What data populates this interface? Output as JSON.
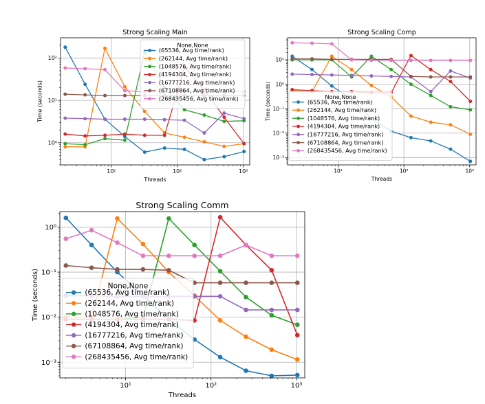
{
  "chart_data": [
    {
      "type": "line",
      "title": "Strong Scaling Main",
      "xlabel": "Threads",
      "ylabel": "Time (seconds)",
      "xscale": "log",
      "yscale": "log",
      "xlim": [
        1.7,
        1250
      ],
      "ylim": [
        0.3,
        300
      ],
      "xticks": [
        10,
        100,
        1000
      ],
      "xtick_labels": [
        "10¹",
        "10²",
        "10³"
      ],
      "yticks": [
        1,
        10,
        100
      ],
      "ytick_labels": [
        "10⁰",
        "10¹",
        "10²"
      ],
      "grid": true,
      "legend_title": "None,None",
      "legend_position": "upper right",
      "x": [
        2,
        4,
        8,
        16,
        32,
        64,
        128,
        256,
        512,
        1024
      ],
      "series": [
        {
          "name": "(65536, Avg time/rank)",
          "color": "#1f77b4",
          "values": [
            180,
            24,
            3.6,
            1.4,
            0.6,
            0.75,
            0.7,
            0.4,
            0.47,
            0.62
          ]
        },
        {
          "name": "(262144, Avg time/rank)",
          "color": "#ff7f0e",
          "values": [
            0.8,
            0.8,
            170,
            21,
            5.5,
            1.7,
            1.35,
            1.05,
            0.82,
            0.95
          ]
        },
        {
          "name": "(1048576, Avg time/rank)",
          "color": "#2ca02c",
          "values": [
            0.95,
            0.9,
            1.25,
            1.15,
            140,
            20,
            6.0,
            4.5,
            3.2,
            3.3
          ]
        },
        {
          "name": "(4194304, Avg time/rank)",
          "color": "#d62728",
          "values": [
            1.6,
            1.45,
            1.5,
            1.6,
            1.5,
            1.5,
            60,
            18,
            4.0,
            0.95
          ]
        },
        {
          "name": "(16777216, Avg time/rank)",
          "color": "#9467bd",
          "values": [
            3.8,
            3.7,
            3.6,
            3.6,
            3.6,
            3.5,
            3.4,
            1.7,
            5.0,
            3.7
          ]
        },
        {
          "name": "(67108864, Avg time/rank)",
          "color": "#8c564b",
          "values": [
            14,
            13.5,
            13,
            13,
            13,
            13,
            13,
            13,
            13,
            13
          ]
        },
        {
          "name": "(268435456, Avg time/rank)",
          "color": "#e377c2",
          "values": [
            58,
            56,
            53,
            17,
            16,
            16,
            16,
            16,
            16,
            16
          ]
        }
      ]
    },
    {
      "type": "line",
      "title": "Strong Scaling Comp",
      "xlabel": "Threads",
      "ylabel": "Time (seconds)",
      "xscale": "log",
      "yscale": "log",
      "xlim": [
        1.7,
        1250
      ],
      "ylim": [
        0.0005,
        80
      ],
      "xticks": [
        10,
        100,
        1000
      ],
      "xtick_labels": [
        "10¹",
        "10²",
        "10³"
      ],
      "yticks": [
        0.001,
        0.01,
        0.1,
        1,
        10
      ],
      "ytick_labels": [
        "10⁻³",
        "10⁻²",
        "10⁻¹",
        "10⁰",
        "10¹"
      ],
      "grid": true,
      "legend_title": "None,None",
      "legend_position": "center left",
      "x": [
        2,
        4,
        8,
        16,
        32,
        64,
        128,
        256,
        512,
        1024
      ],
      "series": [
        {
          "name": "(65536, Avg time/rank)",
          "color": "#1f77b4",
          "values": [
            14,
            4.0,
            0.85,
            0.25,
            0.04,
            0.012,
            0.0065,
            0.0048,
            0.0022,
            0.0007
          ]
        },
        {
          "name": "(262144, Avg time/rank)",
          "color": "#ff7f0e",
          "values": [
            0.55,
            0.5,
            14,
            4.0,
            0.9,
            0.3,
            0.05,
            0.028,
            0.022,
            0.009
          ]
        },
        {
          "name": "(1048576, Avg time/rank)",
          "color": "#2ca02c",
          "values": [
            10,
            10,
            10,
            2.0,
            14,
            4.0,
            1.0,
            0.35,
            0.12,
            0.09
          ]
        },
        {
          "name": "(4194304, Avg time/rank)",
          "color": "#d62728",
          "values": [
            0.6,
            0.55,
            0.5,
            0.5,
            0.45,
            0.45,
            15,
            4.0,
            1.3,
            0.2
          ]
        },
        {
          "name": "(16777216, Avg time/rank)",
          "color": "#9467bd",
          "values": [
            2.6,
            2.5,
            2.4,
            2.3,
            2.2,
            2.1,
            2.0,
            0.5,
            3.5,
            1.8
          ]
        },
        {
          "name": "(67108864, Avg time/rank)",
          "color": "#8c564b",
          "values": [
            11,
            11,
            10.5,
            10.5,
            10.5,
            10.5,
            2.1,
            2.0,
            2.0,
            2.0
          ]
        },
        {
          "name": "(268435456, Avg time/rank)",
          "color": "#e377c2",
          "values": [
            50,
            48,
            45,
            10,
            9.5,
            9.5,
            9.5,
            9.5,
            9.5,
            9.5
          ]
        }
      ]
    },
    {
      "type": "line",
      "title": "Strong Scaling Comm",
      "xlabel": "Threads",
      "ylabel": "Time (seconds)",
      "xscale": "log",
      "yscale": "log",
      "xlim": [
        1.7,
        1250
      ],
      "ylim": [
        0.00045,
        2.2
      ],
      "xticks": [
        10,
        100,
        1000
      ],
      "xtick_labels": [
        "10¹",
        "10²",
        "10³"
      ],
      "yticks": [
        0.001,
        0.01,
        0.1,
        1
      ],
      "ytick_labels": [
        "10⁻³",
        "10⁻²",
        "10⁻¹",
        "10⁰"
      ],
      "grid": true,
      "legend_title": "None,None",
      "legend_position": "lower left",
      "x": [
        2,
        4,
        8,
        16,
        32,
        64,
        128,
        256,
        512,
        1024
      ],
      "series": [
        {
          "name": "(65536, Avg time/rank)",
          "color": "#1f77b4",
          "values": [
            1.6,
            0.4,
            0.1,
            0.03,
            0.009,
            0.0032,
            0.0013,
            0.00065,
            0.0005,
            0.00052
          ]
        },
        {
          "name": "(262144, Avg time/rank)",
          "color": "#ff7f0e",
          "values": [
            0.01,
            0.01,
            1.55,
            0.42,
            0.1,
            0.03,
            0.0085,
            0.0037,
            0.0019,
            0.00115
          ]
        },
        {
          "name": "(1048576, Avg time/rank)",
          "color": "#2ca02c",
          "values": [
            0.009,
            0.009,
            0.009,
            0.01,
            1.55,
            0.4,
            0.105,
            0.028,
            0.011,
            0.0068
          ]
        },
        {
          "name": "(4194304, Avg time/rank)",
          "color": "#d62728",
          "values": [
            0.009,
            0.009,
            0.009,
            0.009,
            0.009,
            0.0085,
            1.65,
            0.4,
            0.11,
            0.004
          ]
        },
        {
          "name": "(16777216, Avg time/rank)",
          "color": "#9467bd",
          "values": [
            0.03,
            0.03,
            0.029,
            0.029,
            0.029,
            0.029,
            0.029,
            0.0145,
            0.0145,
            0.0145
          ]
        },
        {
          "name": "(67108864, Avg time/rank)",
          "color": "#8c564b",
          "values": [
            0.14,
            0.125,
            0.115,
            0.115,
            0.11,
            0.058,
            0.058,
            0.058,
            0.058,
            0.058
          ]
        },
        {
          "name": "(268435456, Avg time/rank)",
          "color": "#e377c2",
          "values": [
            0.55,
            0.85,
            0.45,
            0.23,
            0.23,
            0.23,
            0.23,
            0.4,
            0.23,
            0.23
          ]
        }
      ]
    }
  ]
}
